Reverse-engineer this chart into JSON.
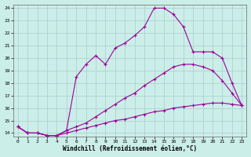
{
  "xlabel": "Windchill (Refroidissement éolien,°C)",
  "xlim": [
    -0.5,
    23.5
  ],
  "ylim": [
    13.7,
    24.3
  ],
  "xticks": [
    0,
    1,
    2,
    3,
    4,
    5,
    6,
    7,
    8,
    9,
    10,
    11,
    12,
    13,
    14,
    15,
    16,
    17,
    18,
    19,
    20,
    21,
    22,
    23
  ],
  "yticks": [
    14,
    15,
    16,
    17,
    18,
    19,
    20,
    21,
    22,
    23,
    24
  ],
  "background_color": "#cceee8",
  "grid_color": "#aacccc",
  "line_color": "#990099",
  "line1_x": [
    0,
    1,
    2,
    3,
    4,
    5,
    6,
    7,
    8,
    9,
    10,
    11,
    12,
    13,
    14,
    15,
    16,
    17,
    18,
    19,
    20,
    21,
    22,
    23
  ],
  "line1_y": [
    14.5,
    14.0,
    14.0,
    13.8,
    13.8,
    14.2,
    18.5,
    19.5,
    20.2,
    19.5,
    20.8,
    21.2,
    21.8,
    22.5,
    24.0,
    24.0,
    23.5,
    22.5,
    20.5,
    20.5,
    20.5,
    20.0,
    18.0,
    16.2
  ],
  "line2_x": [
    0,
    1,
    2,
    3,
    4,
    5,
    6,
    7,
    8,
    9,
    10,
    11,
    12,
    13,
    14,
    15,
    16,
    17,
    18,
    19,
    20,
    21,
    22,
    23
  ],
  "line2_y": [
    14.5,
    14.0,
    14.0,
    13.8,
    13.8,
    14.2,
    14.5,
    14.8,
    15.3,
    15.8,
    16.3,
    16.8,
    17.2,
    17.8,
    18.3,
    18.8,
    19.3,
    19.5,
    19.5,
    19.3,
    19.0,
    18.2,
    17.2,
    16.2
  ],
  "line3_x": [
    0,
    1,
    2,
    3,
    4,
    5,
    6,
    7,
    8,
    9,
    10,
    11,
    12,
    13,
    14,
    15,
    16,
    17,
    18,
    19,
    20,
    21,
    22,
    23
  ],
  "line3_y": [
    14.5,
    14.0,
    14.0,
    13.8,
    13.8,
    14.0,
    14.2,
    14.4,
    14.6,
    14.8,
    15.0,
    15.1,
    15.3,
    15.5,
    15.7,
    15.8,
    16.0,
    16.1,
    16.2,
    16.3,
    16.4,
    16.4,
    16.3,
    16.2
  ]
}
